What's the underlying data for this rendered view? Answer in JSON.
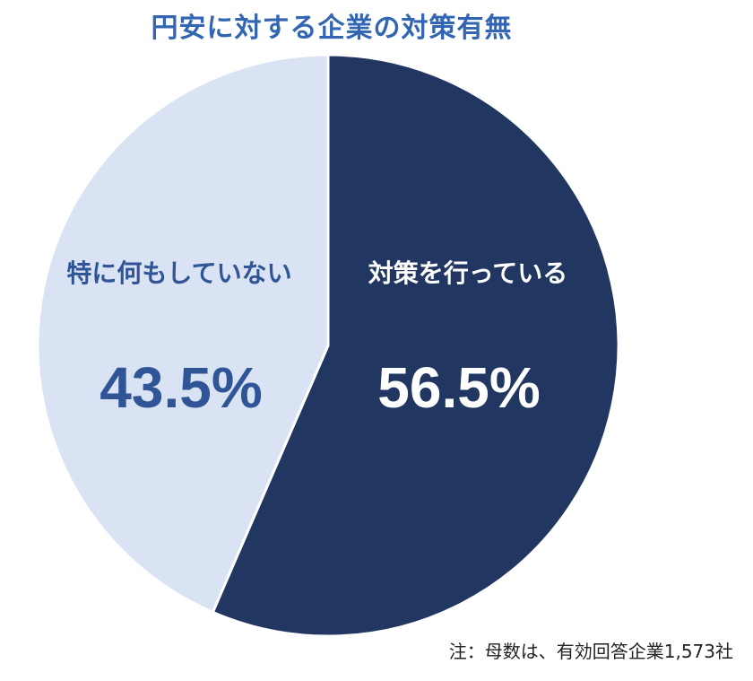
{
  "chart_data": {
    "type": "pie",
    "title": "円安に対する企業の対策有無",
    "slices": [
      {
        "label": "対策を行っている",
        "value": 56.5,
        "value_label": "56.5%",
        "color": "#213761",
        "text_color": "#ffffff"
      },
      {
        "label": "特に何もしていない",
        "value": 43.5,
        "value_label": "43.5%",
        "color": "#dae3f3",
        "text_color": "#2f5597"
      }
    ],
    "start_angle": "12 o'clock",
    "direction": "clockwise",
    "slice_border_color": "#ffffff",
    "legend": "none",
    "note": "注：母数は、有効回答企業1,573社"
  },
  "colors": {
    "title": "#3366b2",
    "note": "#222222"
  }
}
